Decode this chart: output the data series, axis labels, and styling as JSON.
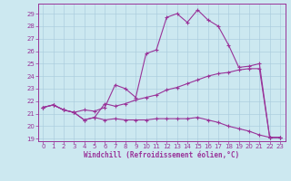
{
  "xlabel": "Windchill (Refroidissement éolien,°C)",
  "background_color": "#cce8f0",
  "grid_color": "#aaccdd",
  "line_color": "#993399",
  "spine_color": "#993399",
  "tick_color": "#993399",
  "xlim": [
    -0.5,
    23.5
  ],
  "ylim": [
    18.8,
    29.8
  ],
  "xtick_fontsize": 5.0,
  "ytick_fontsize": 5.0,
  "xlabel_fontsize": 5.5,
  "series1_x": [
    0,
    1,
    2,
    3,
    4,
    5,
    6,
    7,
    8,
    9,
    10,
    11,
    12,
    13,
    14,
    15,
    16,
    17,
    18,
    19,
    20,
    21,
    22,
    23
  ],
  "series1_y": [
    21.5,
    21.7,
    21.3,
    21.1,
    21.3,
    21.2,
    21.5,
    23.3,
    23.0,
    22.3,
    25.8,
    26.1,
    28.7,
    29.0,
    28.3,
    29.3,
    28.5,
    28.0,
    26.5,
    24.7,
    24.8,
    25.0,
    19.1,
    19.1
  ],
  "series2_x": [
    0,
    1,
    2,
    3,
    4,
    5,
    6,
    7,
    8,
    9,
    10,
    11,
    12,
    13,
    14,
    15,
    16,
    17,
    18,
    19,
    20,
    21,
    22,
    23
  ],
  "series2_y": [
    21.5,
    21.7,
    21.3,
    21.1,
    20.5,
    20.7,
    21.8,
    21.6,
    21.8,
    22.1,
    22.3,
    22.5,
    22.9,
    23.1,
    23.4,
    23.7,
    24.0,
    24.2,
    24.3,
    24.5,
    24.6,
    24.6,
    19.1,
    19.1
  ],
  "series3_x": [
    0,
    1,
    2,
    3,
    4,
    5,
    6,
    7,
    8,
    9,
    10,
    11,
    12,
    13,
    14,
    15,
    16,
    17,
    18,
    19,
    20,
    21,
    22,
    23
  ],
  "series3_y": [
    21.5,
    21.7,
    21.3,
    21.1,
    20.5,
    20.7,
    20.5,
    20.6,
    20.5,
    20.5,
    20.5,
    20.6,
    20.6,
    20.6,
    20.6,
    20.7,
    20.5,
    20.3,
    20.0,
    19.8,
    19.6,
    19.3,
    19.1,
    19.1
  ]
}
